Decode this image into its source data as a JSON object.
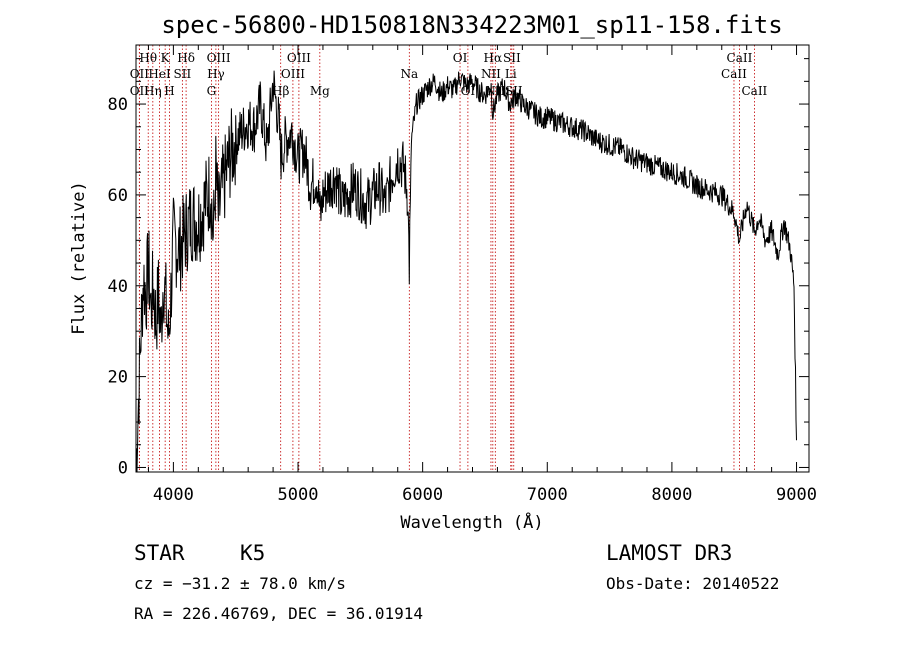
{
  "chart_data": {
    "type": "line",
    "title": "spec-56800-HD150818N334223M01_sp11-158.fits",
    "xlabel": "Wavelength (Å)",
    "ylabel": "Flux (relative)",
    "xlim": [
      3700,
      9100
    ],
    "ylim": [
      -1,
      93
    ],
    "xticks": [
      4000,
      5000,
      6000,
      7000,
      8000,
      9000
    ],
    "yticks": [
      0,
      20,
      40,
      60,
      80
    ],
    "series": [
      {
        "name": "flux",
        "x": [
          3700,
          3720,
          3740,
          3760,
          3780,
          3800,
          3820,
          3840,
          3860,
          3880,
          3900,
          3920,
          3940,
          3960,
          3980,
          4000,
          4050,
          4100,
          4150,
          4200,
          4250,
          4300,
          4320,
          4340,
          4360,
          4400,
          4450,
          4500,
          4550,
          4600,
          4650,
          4700,
          4750,
          4800,
          4850,
          4860,
          4900,
          4950,
          5000,
          5050,
          5100,
          5150,
          5180,
          5200,
          5250,
          5300,
          5350,
          5400,
          5450,
          5500,
          5550,
          5600,
          5650,
          5700,
          5750,
          5800,
          5850,
          5880,
          5893,
          5910,
          5950,
          6000,
          6050,
          6100,
          6150,
          6200,
          6250,
          6300,
          6350,
          6400,
          6450,
          6500,
          6550,
          6563,
          6600,
          6650,
          6700,
          6750,
          6800,
          6850,
          6900,
          6950,
          7000,
          7100,
          7200,
          7300,
          7400,
          7500,
          7600,
          7700,
          7800,
          7900,
          8000,
          8100,
          8200,
          8300,
          8400,
          8450,
          8500,
          8542,
          8600,
          8662,
          8700,
          8750,
          8800,
          8850,
          8900,
          8950,
          8980,
          9000
        ],
        "y": [
          0,
          15,
          30,
          42,
          38,
          45,
          35,
          40,
          32,
          38,
          30,
          42,
          36,
          28,
          38,
          50,
          48,
          52,
          55,
          54,
          58,
          62,
          50,
          65,
          55,
          62,
          68,
          72,
          74,
          76,
          75,
          80,
          70,
          85,
          75,
          68,
          72,
          74,
          68,
          70,
          62,
          64,
          55,
          60,
          62,
          64,
          58,
          60,
          62,
          60,
          58,
          60,
          62,
          58,
          64,
          68,
          66,
          60,
          44,
          72,
          80,
          82,
          84,
          85,
          82,
          84,
          83,
          86,
          84,
          85,
          83,
          82,
          84,
          78,
          82,
          84,
          80,
          82,
          80,
          79,
          78,
          77,
          77,
          76,
          75,
          74,
          72,
          71,
          70,
          68,
          67,
          66,
          65,
          64,
          62,
          61,
          60,
          58,
          56,
          50,
          58,
          52,
          55,
          50,
          52,
          47,
          54,
          48,
          40,
          6
        ]
      }
    ],
    "emission_lines": [
      {
        "name": "OII",
        "wavelength": 3727,
        "row": 3
      },
      {
        "name": "OII",
        "wavelength": 3727,
        "row": 2
      },
      {
        "name": "Hθ",
        "wavelength": 3798,
        "row": 1
      },
      {
        "name": "Hη",
        "wavelength": 3835,
        "row": 3
      },
      {
        "name": "HeI",
        "wavelength": 3889,
        "row": 2
      },
      {
        "name": "K",
        "wavelength": 3934,
        "row": 1
      },
      {
        "name": "H",
        "wavelength": 3969,
        "row": 3
      },
      {
        "name": "SII",
        "wavelength": 4072,
        "row": 2
      },
      {
        "name": "Hδ",
        "wavelength": 4102,
        "row": 1
      },
      {
        "name": "G",
        "wavelength": 4305,
        "row": 3
      },
      {
        "name": "Hγ",
        "wavelength": 4341,
        "row": 2
      },
      {
        "name": "OIII",
        "wavelength": 4363,
        "row": 1
      },
      {
        "name": "Hβ",
        "wavelength": 4861,
        "row": 3
      },
      {
        "name": "OIII",
        "wavelength": 4959,
        "row": 2
      },
      {
        "name": "OIII",
        "wavelength": 5007,
        "row": 1
      },
      {
        "name": "Mg",
        "wavelength": 5175,
        "row": 3
      },
      {
        "name": "Na",
        "wavelength": 5893,
        "row": 2
      },
      {
        "name": "OI",
        "wavelength": 6300,
        "row": 1
      },
      {
        "name": "OI",
        "wavelength": 6363,
        "row": 3
      },
      {
        "name": "NII",
        "wavelength": 6548,
        "row": 2
      },
      {
        "name": "Hα",
        "wavelength": 6563,
        "row": 1
      },
      {
        "name": "NII",
        "wavelength": 6583,
        "row": 3
      },
      {
        "name": "Li",
        "wavelength": 6707,
        "row": 2
      },
      {
        "name": "SII",
        "wavelength": 6716,
        "row": 1
      },
      {
        "name": "SII",
        "wavelength": 6731,
        "row": 3
      },
      {
        "name": "CaII",
        "wavelength": 8498,
        "row": 2
      },
      {
        "name": "CaII",
        "wavelength": 8542,
        "row": 1
      },
      {
        "name": "CaII",
        "wavelength": 8662,
        "row": 3
      }
    ]
  },
  "info": {
    "class_text": "STAR",
    "subclass_text": "K5",
    "survey_text": "LAMOST DR3",
    "cz_text": "cz = −31.2 ± 78.0 km/s",
    "obsdate_text": "Obs-Date: 20140522",
    "coords_text": "RA = 226.46769, DEC =  36.01914"
  },
  "colors": {
    "spectrum": "#000000",
    "line_marker": "#c00000",
    "background": "#ffffff"
  }
}
